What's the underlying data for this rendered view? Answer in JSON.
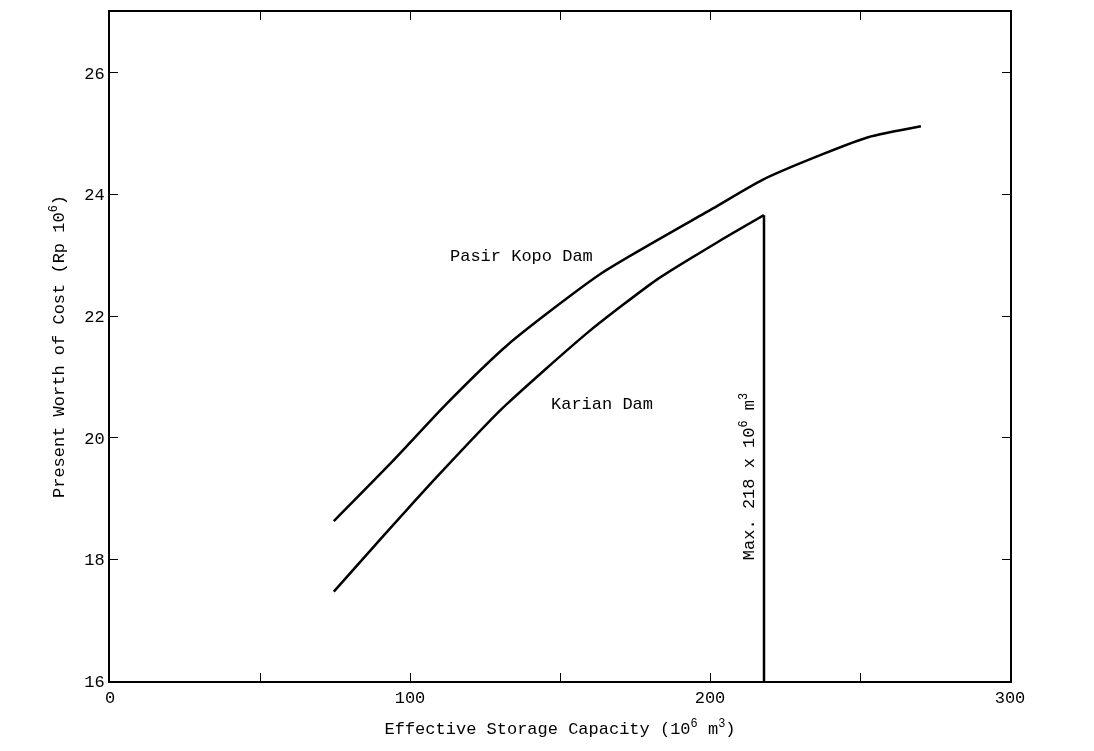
{
  "chart_data": {
    "type": "line",
    "xlabel": "Effective Storage Capacity (10$^{6}$ m$^{3}$)",
    "ylabel": "Present Worth of Cost (Rp 10$^{6}$)",
    "xlim": [
      0,
      300
    ],
    "ylim": [
      16,
      27
    ],
    "xticks": [
      0,
      {
        "value": 50,
        "label": null
      },
      100,
      {
        "value": 150,
        "label": null
      },
      200,
      {
        "value": 250,
        "label": null
      },
      300
    ],
    "yticks": [
      16,
      18,
      20,
      22,
      24,
      26
    ],
    "legend": false,
    "marker": "none",
    "line_style": "solid",
    "series": [
      {
        "name": "Pasir Kopo Dam",
        "color": "#000000",
        "x": [
          74.6,
          94.3,
          112,
          132.6,
          163.7,
          201,
          217.5,
          238,
          252.7,
          270.3
        ],
        "values": [
          18.63,
          19.62,
          20.55,
          21.53,
          22.7,
          23.77,
          24.24,
          24.67,
          24.94,
          25.12
        ]
      },
      {
        "name": "Karian Dam",
        "color": "#000000",
        "x": [
          74.6,
          91.2,
          109.8,
          130.5,
          159.5,
          182.3,
          203,
          218
        ],
        "values": [
          17.47,
          18.39,
          19.4,
          20.47,
          21.74,
          22.6,
          23.23,
          23.66
        ]
      },
      {
        "name": "Max. 218 x 10$^{6}$ m$^{3}$",
        "color": "#000000",
        "x": [
          218,
          218
        ],
        "values": [
          23.66,
          16
        ]
      }
    ]
  }
}
